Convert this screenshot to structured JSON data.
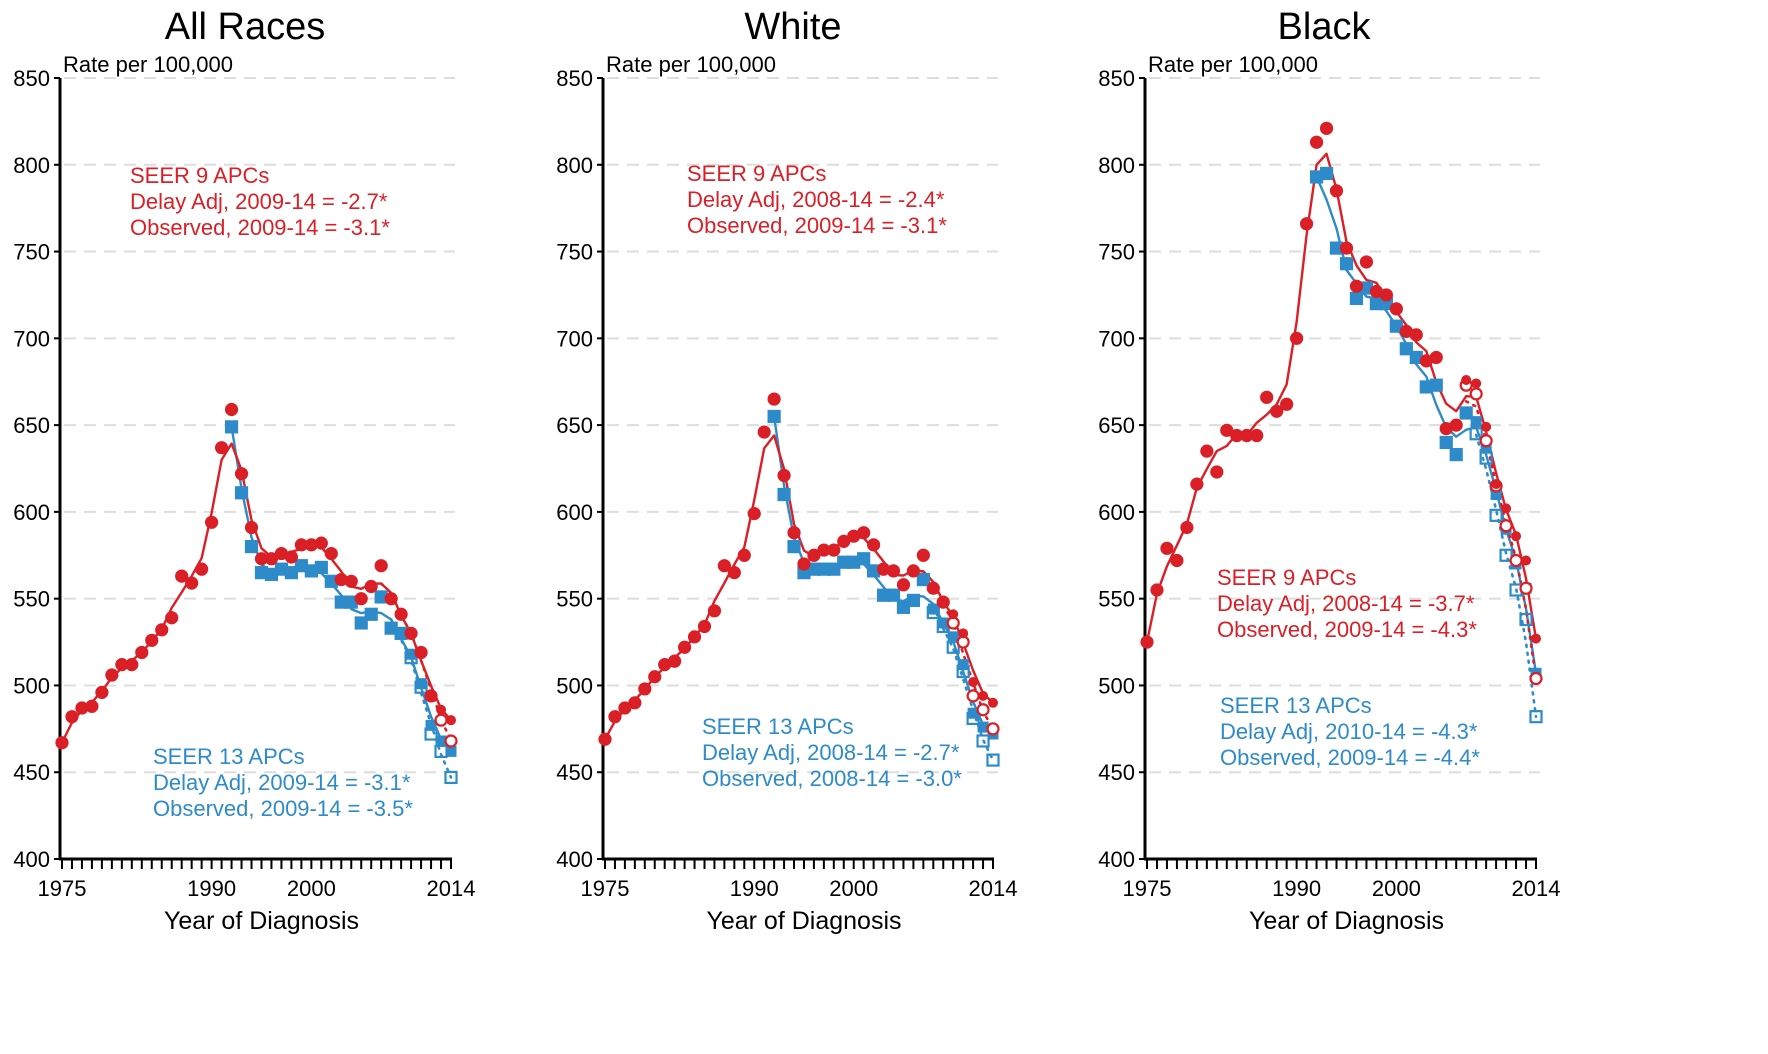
{
  "colors": {
    "seer9": "#DA1F26",
    "seer13": "#2E8BC9",
    "grid": "#dddddd",
    "axis": "#000000"
  },
  "chart_data": [
    {
      "type": "line",
      "title": "All Races",
      "ylabel": "Rate per 100,000",
      "xlabel": "Year of Diagnosis",
      "ylim": [
        400,
        850
      ],
      "xlim": [
        1975,
        2014
      ],
      "yticks": [
        400,
        450,
        500,
        550,
        600,
        650,
        700,
        750,
        800,
        850
      ],
      "xticklabels": [
        "1975",
        "1990",
        "2000",
        "2014"
      ],
      "grid": true,
      "annotations": {
        "seer9": [
          "SEER 9 APCs",
          "Delay Adj, 2009-14 = -2.7*",
          "Observed, 2009-14 = -3.1*"
        ],
        "seer13": [
          "SEER 13 APCs",
          "Delay Adj, 2009-14 = -3.1*",
          "Observed, 2009-14 = -3.5*"
        ]
      },
      "series": [
        {
          "x": [
            1975,
            1976,
            1977,
            1978,
            1979,
            1980,
            1981,
            1982,
            1983,
            1984,
            1985,
            1986,
            1987,
            1988,
            1989,
            1990,
            1991,
            1992,
            1993,
            1994,
            1995,
            1996,
            1997,
            1998,
            1999,
            2000,
            2001,
            2002,
            2003,
            2004,
            2005,
            2006,
            2007,
            2008,
            2009,
            2010,
            2011,
            2012,
            2013,
            2014
          ],
          "values": [
            467,
            482,
            487,
            488,
            496,
            506,
            512,
            512,
            519,
            526,
            532,
            539,
            563,
            559,
            567,
            594,
            637,
            659,
            622,
            591,
            573,
            573,
            576,
            574,
            581,
            581,
            582,
            576,
            561,
            560,
            550,
            557,
            569,
            550,
            541,
            530,
            519,
            494,
            486,
            480
          ]
        },
        {
          "x": [
            1975,
            1976,
            1977,
            1978,
            1979,
            1980,
            1981,
            1982,
            1983,
            1984,
            1985,
            1986,
            1987,
            1988,
            1989,
            1990,
            1991,
            1992,
            1993,
            1994,
            1995,
            1996,
            1997,
            1998,
            1999,
            2000,
            2001,
            2002,
            2003,
            2004,
            2005,
            2006,
            2007,
            2008,
            2009,
            2010,
            2011,
            2012,
            2013,
            2014
          ],
          "values": [
            467,
            482,
            487,
            488,
            496,
            506,
            512,
            512,
            519,
            526,
            532,
            539,
            563,
            559,
            567,
            594,
            637,
            659,
            622,
            591,
            573,
            573,
            576,
            574,
            581,
            581,
            582,
            576,
            561,
            560,
            550,
            557,
            569,
            550,
            541,
            530,
            519,
            494,
            480,
            468
          ]
        },
        {
          "x": [
            1992,
            1993,
            1994,
            1995,
            1996,
            1997,
            1998,
            1999,
            2000,
            2001,
            2002,
            2003,
            2004,
            2005,
            2006,
            2007,
            2008,
            2009,
            2010,
            2011,
            2012,
            2013,
            2014
          ],
          "values": [
            649,
            611,
            580,
            565,
            564,
            567,
            565,
            569,
            566,
            568,
            560,
            548,
            548,
            536,
            541,
            551,
            533,
            530,
            518,
            501,
            477,
            468,
            462
          ]
        },
        {
          "x": [
            1992,
            1993,
            1994,
            1995,
            1996,
            1997,
            1998,
            1999,
            2000,
            2001,
            2002,
            2003,
            2004,
            2005,
            2006,
            2007,
            2008,
            2009,
            2010,
            2011,
            2012,
            2013,
            2014
          ],
          "values": [
            649,
            611,
            580,
            565,
            564,
            567,
            565,
            569,
            566,
            568,
            560,
            548,
            548,
            536,
            541,
            551,
            533,
            530,
            516,
            499,
            472,
            462,
            447
          ]
        }
      ]
    },
    {
      "type": "line",
      "title": "White",
      "ylabel": "Rate per 100,000",
      "xlabel": "Year of Diagnosis",
      "ylim": [
        400,
        850
      ],
      "xlim": [
        1975,
        2014
      ],
      "yticks": [
        400,
        450,
        500,
        550,
        600,
        650,
        700,
        750,
        800,
        850
      ],
      "xticklabels": [
        "1975",
        "1990",
        "2000",
        "2014"
      ],
      "grid": true,
      "annotations": {
        "seer9": [
          "SEER 9 APCs",
          "Delay Adj, 2008-14 = -2.4*",
          "Observed, 2009-14 = -3.1*"
        ],
        "seer13": [
          "SEER 13 APCs",
          "Delay Adj, 2008-14 = -2.7*",
          "Observed, 2008-14 = -3.0*"
        ]
      },
      "series": [
        {
          "x": [
            1975,
            1976,
            1977,
            1978,
            1979,
            1980,
            1981,
            1982,
            1983,
            1984,
            1985,
            1986,
            1987,
            1988,
            1989,
            1990,
            1991,
            1992,
            1993,
            1994,
            1995,
            1996,
            1997,
            1998,
            1999,
            2000,
            2001,
            2002,
            2003,
            2004,
            2005,
            2006,
            2007,
            2008,
            2009,
            2010,
            2011,
            2012,
            2013,
            2014
          ],
          "values": [
            469,
            482,
            487,
            490,
            498,
            505,
            512,
            514,
            522,
            528,
            534,
            543,
            569,
            565,
            575,
            599,
            646,
            665,
            621,
            588,
            570,
            575,
            578,
            578,
            583,
            586,
            588,
            581,
            567,
            566,
            558,
            566,
            575,
            556,
            548,
            541,
            530,
            502,
            494,
            490
          ]
        },
        {
          "x": [
            1975,
            1976,
            1977,
            1978,
            1979,
            1980,
            1981,
            1982,
            1983,
            1984,
            1985,
            1986,
            1987,
            1988,
            1989,
            1990,
            1991,
            1992,
            1993,
            1994,
            1995,
            1996,
            1997,
            1998,
            1999,
            2000,
            2001,
            2002,
            2003,
            2004,
            2005,
            2006,
            2007,
            2008,
            2009,
            2010,
            2011,
            2012,
            2013,
            2014
          ],
          "values": [
            469,
            482,
            487,
            490,
            498,
            505,
            512,
            514,
            522,
            528,
            534,
            543,
            569,
            565,
            575,
            599,
            646,
            665,
            621,
            588,
            570,
            575,
            578,
            578,
            583,
            586,
            588,
            581,
            567,
            566,
            558,
            566,
            575,
            556,
            548,
            536,
            525,
            494,
            486,
            475
          ]
        },
        {
          "x": [
            1992,
            1993,
            1994,
            1995,
            1996,
            1997,
            1998,
            1999,
            2000,
            2001,
            2002,
            2003,
            2004,
            2005,
            2006,
            2007,
            2008,
            2009,
            2010,
            2011,
            2012,
            2013,
            2014
          ],
          "values": [
            655,
            610,
            580,
            565,
            567,
            567,
            567,
            571,
            571,
            573,
            566,
            552,
            552,
            545,
            549,
            561,
            544,
            536,
            528,
            512,
            484,
            476,
            472
          ]
        },
        {
          "x": [
            1992,
            1993,
            1994,
            1995,
            1996,
            1997,
            1998,
            1999,
            2000,
            2001,
            2002,
            2003,
            2004,
            2005,
            2006,
            2007,
            2008,
            2009,
            2010,
            2011,
            2012,
            2013,
            2014
          ],
          "values": [
            655,
            610,
            580,
            565,
            567,
            567,
            567,
            571,
            571,
            573,
            566,
            552,
            552,
            545,
            549,
            561,
            542,
            534,
            522,
            508,
            481,
            468,
            457
          ]
        }
      ]
    },
    {
      "type": "line",
      "title": "Black",
      "ylabel": "Rate per 100,000",
      "xlabel": "Year of Diagnosis",
      "ylim": [
        400,
        850
      ],
      "xlim": [
        1975,
        2014
      ],
      "yticks": [
        400,
        450,
        500,
        550,
        600,
        650,
        700,
        750,
        800,
        850
      ],
      "xticklabels": [
        "1975",
        "1990",
        "2000",
        "2014"
      ],
      "grid": true,
      "annotations": {
        "seer9": [
          "SEER 9 APCs",
          "Delay Adj, 2008-14 = -3.7*",
          "Observed, 2009-14 = -4.3*"
        ],
        "seer13": [
          "SEER 13 APCs",
          "Delay Adj, 2010-14 = -4.3*",
          "Observed, 2009-14 = -4.4*"
        ]
      },
      "series": [
        {
          "x": [
            1975,
            1976,
            1977,
            1978,
            1979,
            1980,
            1981,
            1982,
            1983,
            1984,
            1985,
            1986,
            1987,
            1988,
            1989,
            1990,
            1991,
            1992,
            1993,
            1994,
            1995,
            1996,
            1997,
            1998,
            1999,
            2000,
            2001,
            2002,
            2003,
            2004,
            2005,
            2006,
            2007,
            2008,
            2009,
            2010,
            2011,
            2012,
            2013,
            2014
          ],
          "values": [
            525,
            555,
            579,
            572,
            591,
            616,
            635,
            623,
            647,
            644,
            644,
            644,
            666,
            658,
            662,
            700,
            766,
            813,
            821,
            785,
            752,
            730,
            744,
            727,
            725,
            717,
            704,
            702,
            687,
            689,
            648,
            650,
            676,
            674,
            649,
            616,
            602,
            586,
            572,
            527
          ]
        },
        {
          "x": [
            1975,
            1976,
            1977,
            1978,
            1979,
            1980,
            1981,
            1982,
            1983,
            1984,
            1985,
            1986,
            1987,
            1988,
            1989,
            1990,
            1991,
            1992,
            1993,
            1994,
            1995,
            1996,
            1997,
            1998,
            1999,
            2000,
            2001,
            2002,
            2003,
            2004,
            2005,
            2006,
            2007,
            2008,
            2009,
            2010,
            2011,
            2012,
            2013,
            2014
          ],
          "values": [
            525,
            555,
            579,
            572,
            591,
            616,
            635,
            623,
            647,
            644,
            644,
            644,
            666,
            658,
            662,
            700,
            766,
            813,
            821,
            785,
            752,
            730,
            744,
            727,
            725,
            717,
            704,
            702,
            687,
            689,
            648,
            650,
            673,
            668,
            641,
            615,
            592,
            572,
            556,
            504
          ]
        },
        {
          "x": [
            1992,
            1993,
            1994,
            1995,
            1996,
            1997,
            1998,
            1999,
            2000,
            2001,
            2002,
            2003,
            2004,
            2005,
            2006,
            2007,
            2008,
            2009,
            2010,
            2011,
            2012,
            2013,
            2014
          ],
          "values": [
            793,
            795,
            752,
            743,
            723,
            729,
            720,
            720,
            707,
            694,
            689,
            672,
            673,
            640,
            633,
            657,
            652,
            637,
            610,
            590,
            570,
            556,
            507
          ]
        },
        {
          "x": [
            1992,
            1993,
            1994,
            1995,
            1996,
            1997,
            1998,
            1999,
            2000,
            2001,
            2002,
            2003,
            2004,
            2005,
            2006,
            2007,
            2008,
            2009,
            2010,
            2011,
            2012,
            2013,
            2014
          ],
          "values": [
            793,
            795,
            752,
            743,
            723,
            729,
            720,
            720,
            707,
            694,
            689,
            672,
            673,
            640,
            633,
            657,
            645,
            631,
            598,
            575,
            555,
            538,
            482
          ]
        }
      ]
    }
  ]
}
